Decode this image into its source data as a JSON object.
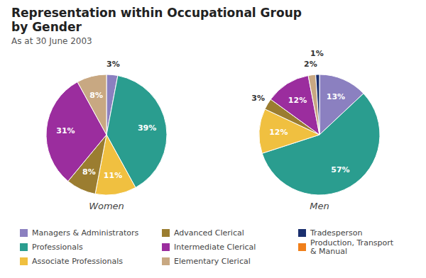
{
  "chart_data": {
    "type": "pie",
    "title": "Representation within Occupational Group\nby Gender",
    "subtitle": "As at 30 June 2003",
    "categories": [
      "Managers & Administrators",
      "Professionals",
      "Associate Professionals",
      "Advanced Clerical",
      "Intermediate Clerical",
      "Elementary Clerical",
      "Tradesperson",
      "Production, Transport\n& Manual"
    ],
    "colors": [
      "#8b80c0",
      "#2a9d8f",
      "#f0c040",
      "#9b7d30",
      "#9b2d9e",
      "#c8a882",
      "#1a2f6e",
      "#f07f1a"
    ],
    "series": [
      {
        "name": "Women",
        "values": [
          3,
          39,
          11,
          8,
          31,
          8,
          0,
          0
        ],
        "value_labels": [
          "3%",
          "39%",
          "11%",
          "8%",
          "31%",
          "8%",
          null,
          null
        ]
      },
      {
        "name": "Men",
        "values": [
          13,
          57,
          12,
          3,
          12,
          2,
          1,
          0
        ],
        "value_labels": [
          "13%",
          "57%",
          "12%",
          "3%",
          "12%",
          "2%",
          "1%",
          null
        ]
      }
    ],
    "data_labels": true,
    "legend": "bottom"
  }
}
